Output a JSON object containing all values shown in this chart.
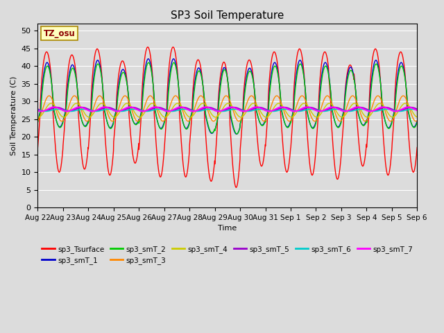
{
  "title": "SP3 Soil Temperature",
  "ylabel": "Soil Temperature (C)",
  "xlabel": "Time",
  "annotation": "TZ_osu",
  "annotation_color": "#8B0000",
  "annotation_bg": "#FFFFC0",
  "ylim": [
    0,
    52
  ],
  "yticks": [
    0,
    5,
    10,
    15,
    20,
    25,
    30,
    35,
    40,
    45,
    50
  ],
  "bg_color": "#DCDCDC",
  "series_colors": {
    "sp3_Tsurface": "#FF0000",
    "sp3_smT_1": "#0000CC",
    "sp3_smT_2": "#00CC00",
    "sp3_smT_3": "#FF8800",
    "sp3_smT_4": "#CCCC00",
    "sp3_smT_5": "#9900CC",
    "sp3_smT_6": "#00CCCC",
    "sp3_smT_7": "#FF00FF"
  },
  "legend_entries": [
    "sp3_Tsurface",
    "sp3_smT_1",
    "sp3_smT_2",
    "sp3_smT_3",
    "sp3_smT_4",
    "sp3_smT_5",
    "sp3_smT_6",
    "sp3_smT_7"
  ],
  "x_tick_labels": [
    "Aug 22",
    "Aug 23",
    "Aug 24",
    "Aug 25",
    "Aug 26",
    "Aug 27",
    "Aug 28",
    "Aug 29",
    "Aug 30",
    "Aug 31",
    "Sep 1",
    "Sep 2",
    "Sep 3",
    "Sep 4",
    "Sep 5",
    "Sep 6"
  ],
  "num_days": 15,
  "points_per_day": 144
}
